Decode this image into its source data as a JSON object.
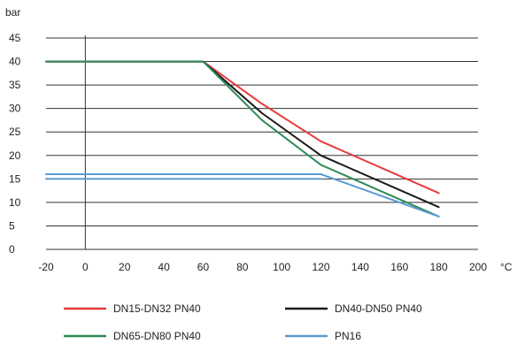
{
  "chart_data": {
    "type": "line",
    "title": "",
    "xlabel": "°C",
    "ylabel": "bar",
    "xlim": [
      -20,
      200
    ],
    "ylim": [
      0,
      45
    ],
    "x_ticks": [
      -20,
      0,
      20,
      40,
      60,
      80,
      100,
      120,
      140,
      160,
      180,
      200
    ],
    "y_ticks": [
      0,
      5,
      10,
      15,
      20,
      25,
      30,
      35,
      40,
      45
    ],
    "grid": "horizontal",
    "legend_position": "bottom",
    "series": [
      {
        "name": "DN15-DN32 PN40",
        "color": "#e83a3a",
        "x": [
          -20,
          60,
          90,
          120,
          180
        ],
        "y": [
          40,
          40,
          31,
          23,
          12
        ]
      },
      {
        "name": "DN40-DN50 PN40",
        "color": "#1a1a1a",
        "x": [
          -20,
          60,
          90,
          120,
          180
        ],
        "y": [
          40,
          40,
          29,
          20,
          9
        ]
      },
      {
        "name": "DN65-DN80 PN40",
        "color": "#2e8b57",
        "x": [
          -20,
          60,
          90,
          120,
          180
        ],
        "y": [
          40,
          40,
          27.5,
          18,
          7
        ]
      },
      {
        "name": "PN16",
        "color": "#5b9bd5",
        "x": [
          -20,
          120,
          180
        ],
        "y": [
          16,
          16,
          7
        ]
      },
      {
        "name": "",
        "color": "#5b9bd5",
        "x": [
          -20,
          120
        ],
        "y": [
          15,
          15
        ]
      }
    ]
  }
}
